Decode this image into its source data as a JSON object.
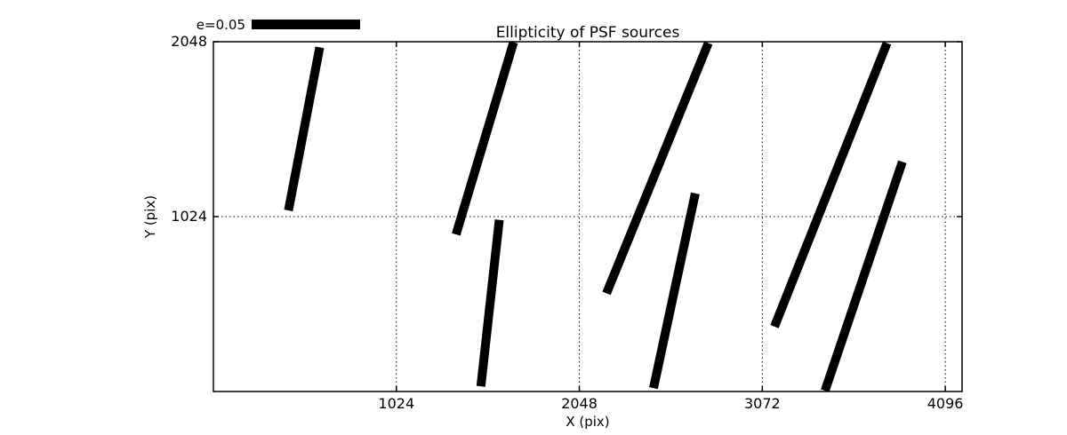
{
  "chart_data": {
    "type": "line",
    "subtype": "ellipticity-whisker-segments",
    "title": "Ellipticity of PSF sources",
    "xlabel": "X (pix)",
    "ylabel": "Y (pix)",
    "xlim": [
      0,
      4190
    ],
    "ylim": [
      0,
      2048
    ],
    "xticks": [
      1024,
      2048,
      3072,
      4096
    ],
    "yticks": [
      1024,
      2048
    ],
    "grid": "dotted",
    "legend": {
      "label": "e=0.05",
      "bar_data_length": 607
    },
    "colors": {
      "whisker": "#000000",
      "axis": "#000000",
      "grid": "#000000",
      "background": "#ffffff"
    },
    "whiskers": [
      {
        "x1": 420,
        "y1": 1060,
        "x2": 595,
        "y2": 2015
      },
      {
        "x1": 1358,
        "y1": 920,
        "x2": 1680,
        "y2": 2045
      },
      {
        "x1": 1497,
        "y1": 30,
        "x2": 1600,
        "y2": 1005
      },
      {
        "x1": 2200,
        "y1": 575,
        "x2": 2770,
        "y2": 2040
      },
      {
        "x1": 2463,
        "y1": 20,
        "x2": 2697,
        "y2": 1160
      },
      {
        "x1": 3140,
        "y1": 380,
        "x2": 3770,
        "y2": 2040
      },
      {
        "x1": 3423,
        "y1": 5,
        "x2": 3856,
        "y2": 1345
      }
    ]
  }
}
